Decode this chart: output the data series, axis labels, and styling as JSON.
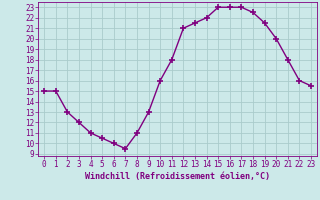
{
  "x": [
    0,
    1,
    2,
    3,
    4,
    5,
    6,
    7,
    8,
    9,
    10,
    11,
    12,
    13,
    14,
    15,
    16,
    17,
    18,
    19,
    20,
    21,
    22,
    23
  ],
  "y": [
    15,
    15,
    13,
    12,
    11,
    10.5,
    10,
    9.5,
    11,
    13,
    16,
    18,
    21,
    21.5,
    22,
    23,
    23,
    23,
    22.5,
    21.5,
    20,
    18,
    16,
    15.5
  ],
  "line_color": "#800080",
  "marker": "+",
  "marker_size": 4,
  "bg_color": "#cce9e9",
  "grid_color": "#aacccc",
  "xlabel": "Windchill (Refroidissement éolien,°C)",
  "ylabel_ticks": [
    9,
    10,
    11,
    12,
    13,
    14,
    15,
    16,
    17,
    18,
    19,
    20,
    21,
    22,
    23
  ],
  "xlim": [
    -0.5,
    23.5
  ],
  "ylim": [
    8.8,
    23.5
  ],
  "xticks": [
    0,
    1,
    2,
    3,
    4,
    5,
    6,
    7,
    8,
    9,
    10,
    11,
    12,
    13,
    14,
    15,
    16,
    17,
    18,
    19,
    20,
    21,
    22,
    23
  ],
  "tick_color": "#800080",
  "label_fontsize": 6.0,
  "tick_fontsize": 5.5,
  "linewidth": 1.0,
  "marker_linewidth": 1.2
}
